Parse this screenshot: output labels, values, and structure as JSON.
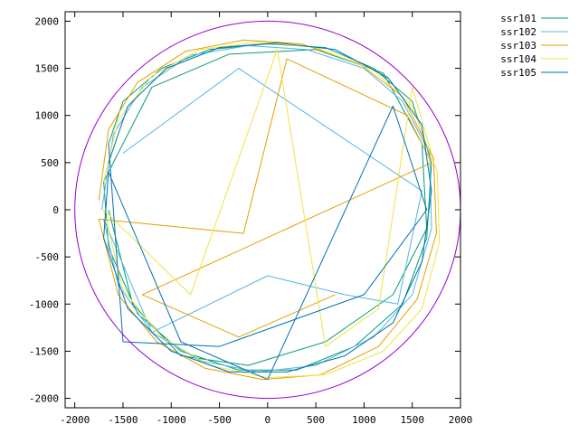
{
  "chart_data": {
    "type": "line",
    "title": "",
    "xlabel": "",
    "ylabel": "",
    "xlim": [
      -2100,
      2000
    ],
    "ylim": [
      -2100,
      2100
    ],
    "xticks": [
      -2000,
      -1500,
      -1000,
      -500,
      0,
      500,
      1000,
      1500,
      2000
    ],
    "yticks": [
      -2000,
      -1500,
      -1000,
      -500,
      0,
      500,
      1000,
      1500,
      2000
    ],
    "grid": false,
    "legend_position": "top-right-outside",
    "boundary_circle": {
      "radius": 2000,
      "color": "#9400d3"
    },
    "series": [
      {
        "name": "ssr101",
        "color": "#009e73",
        "x": [
          -1650,
          -1500,
          -1100,
          -600,
          0,
          600,
          1100,
          1500,
          1700,
          1650,
          1400,
          900,
          300,
          -300,
          -900,
          -1350,
          -1650,
          -1700,
          -1200,
          -400,
          500,
          1200,
          1600,
          1650,
          1300,
          600,
          -200,
          -900,
          -1400,
          -1650
        ],
        "y": [
          700,
          1150,
          1500,
          1700,
          1760,
          1720,
          1500,
          1150,
          500,
          -300,
          -1000,
          -1450,
          -1700,
          -1700,
          -1500,
          -1100,
          -400,
          300,
          1300,
          1650,
          1700,
          1450,
          700,
          -200,
          -900,
          -1400,
          -1650,
          -1550,
          -1000,
          0
        ]
      },
      {
        "name": "ssr102",
        "color": "#56b4e9",
        "x": [
          -1720,
          -1600,
          -1300,
          -800,
          -200,
          400,
          1000,
          1400,
          1680,
          1700,
          1500,
          1100,
          500,
          -100,
          -700,
          -1200,
          -1550,
          -1700,
          -1200,
          0,
          800,
          1350,
          1600,
          -300,
          -1500
        ],
        "y": [
          0,
          800,
          1300,
          1640,
          1740,
          1700,
          1500,
          1150,
          600,
          -200,
          -900,
          -1350,
          -1650,
          -1720,
          -1600,
          -1300,
          -800,
          -100,
          -1300,
          -700,
          -900,
          -1000,
          200,
          1500,
          600
        ]
      },
      {
        "name": "ssr103",
        "color": "#e69f00",
        "x": [
          -1750,
          -1650,
          -1350,
          -850,
          -250,
          350,
          950,
          1400,
          1720,
          1750,
          1550,
          1150,
          550,
          -50,
          -650,
          -1150,
          -1550,
          -1750,
          -250,
          200,
          1450,
          1700,
          -1300,
          -300,
          700
        ],
        "y": [
          100,
          850,
          1350,
          1680,
          1800,
          1760,
          1550,
          1200,
          550,
          -250,
          -950,
          -1450,
          -1750,
          -1800,
          -1680,
          -1400,
          -900,
          -100,
          -250,
          1600,
          1000,
          500,
          -900,
          -1350,
          -900
        ]
      },
      {
        "name": "ssr104",
        "color": "#f0e442",
        "x": [
          -1700,
          -1550,
          -1200,
          -700,
          -100,
          500,
          1100,
          1500,
          1760,
          1780,
          1600,
          1200,
          600,
          0,
          -600,
          -1100,
          -1500,
          -1700,
          -800,
          100,
          600,
          1150,
          1500,
          1700
        ],
        "y": [
          300,
          950,
          1420,
          1700,
          1780,
          1720,
          1480,
          1100,
          400,
          -350,
          -1050,
          -1500,
          -1750,
          -1780,
          -1650,
          -1350,
          -850,
          0,
          -900,
          1700,
          -1450,
          -1050,
          1300,
          600
        ]
      },
      {
        "name": "ssr105",
        "color": "#0072b2",
        "x": [
          -1650,
          -1450,
          -1050,
          -500,
          100,
          700,
          1250,
          1600,
          1700,
          1600,
          1300,
          800,
          200,
          -400,
          -1000,
          -1450,
          -1700,
          -1650,
          -900,
          0,
          1300,
          1650,
          1000,
          -500,
          -1500,
          -1650
        ],
        "y": [
          500,
          1100,
          1500,
          1720,
          1770,
          1700,
          1400,
          900,
          200,
          -550,
          -1200,
          -1550,
          -1720,
          -1720,
          -1500,
          -1050,
          -300,
          400,
          -1400,
          -1800,
          1100,
          0,
          -900,
          -1450,
          -1400,
          700
        ]
      }
    ]
  }
}
